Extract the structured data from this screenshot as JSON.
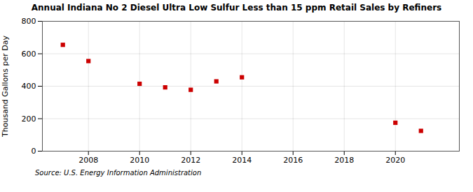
{
  "chart_data": {
    "type": "scatter",
    "title": "Annual Indiana No 2 Diesel Ultra Low Sulfur Less than 15 ppm Retail Sales by Refiners",
    "ylabel": "Thousand Gallons per Day",
    "source": "Source: U.S. Energy Information Administration",
    "x": [
      2007,
      2008,
      2010,
      2011,
      2012,
      2013,
      2014,
      2020,
      2021
    ],
    "values": [
      655,
      555,
      415,
      393,
      378,
      430,
      455,
      175,
      125
    ],
    "color": "#cc0000",
    "marker": "square",
    "xlim": [
      2006.2,
      2022.5
    ],
    "xticks": [
      2008,
      2010,
      2012,
      2014,
      2016,
      2018,
      2020
    ],
    "ylim": [
      0,
      800
    ],
    "yticks": [
      0,
      200,
      400,
      600,
      800
    ],
    "grid": true
  }
}
